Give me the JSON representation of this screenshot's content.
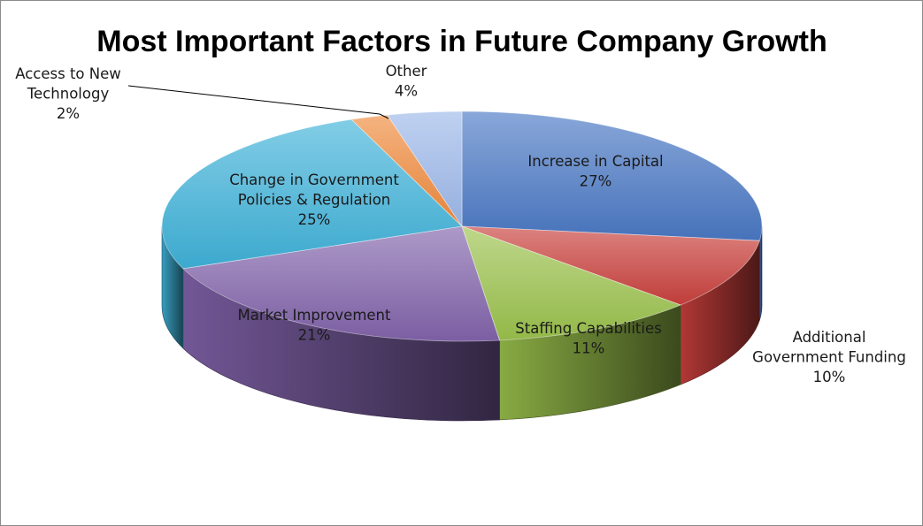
{
  "chart_data": {
    "type": "pie",
    "title": "Most Important Factors in Future Company Growth",
    "slices": [
      {
        "key": "capital",
        "lines": [
          "Increase in Capital"
        ],
        "value": 27,
        "value_label": "27%",
        "color": "#4a78c4"
      },
      {
        "key": "funding",
        "lines": [
          "Additional",
          "Government Funding"
        ],
        "value": 10,
        "value_label": "10%",
        "color": "#c9403c"
      },
      {
        "key": "staffing",
        "lines": [
          "Staffing Capabilities"
        ],
        "value": 11,
        "value_label": "11%",
        "color": "#9bc24c"
      },
      {
        "key": "market",
        "lines": [
          "Market Improvement"
        ],
        "value": 21,
        "value_label": "21%",
        "color": "#8163aa"
      },
      {
        "key": "policy",
        "lines": [
          "Change in Government",
          "Policies & Regulation"
        ],
        "value": 25,
        "value_label": "25%",
        "color": "#3fb2d9"
      },
      {
        "key": "technology",
        "lines": [
          "Access to New",
          "Technology"
        ],
        "value": 2,
        "value_label": "2%",
        "color": "#f08a3c"
      },
      {
        "key": "other",
        "lines": [
          "Other"
        ],
        "value": 4,
        "value_label": "4%",
        "color": "#9db8ea"
      }
    ]
  }
}
